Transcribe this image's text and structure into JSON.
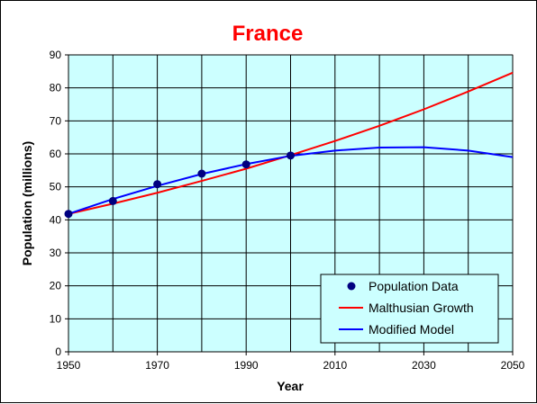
{
  "chart_data": {
    "type": "line",
    "title": "France",
    "xlabel": "Year",
    "ylabel": "Population (millions)",
    "xlim": [
      1950,
      2050
    ],
    "ylim": [
      0,
      90
    ],
    "x_ticks": [
      1950,
      1970,
      1990,
      2010,
      2030,
      2050
    ],
    "x_gridlines": [
      1950,
      1960,
      1970,
      1980,
      1990,
      2000,
      2010,
      2020,
      2030,
      2040,
      2050
    ],
    "y_ticks": [
      0,
      10,
      20,
      30,
      40,
      50,
      60,
      70,
      80,
      90
    ],
    "grid": true,
    "legend_position": "bottom-right",
    "colors": {
      "title": "#ff0000",
      "plot_background": "#ccffff",
      "data_points": "#000080",
      "malthusian": "#ff0000",
      "modified": "#0000ff"
    },
    "series": [
      {
        "name": "Population Data",
        "kind": "markers",
        "x": [
          1950,
          1960,
          1970,
          1980,
          1990,
          2000
        ],
        "y": [
          41.8,
          45.7,
          50.8,
          54.0,
          56.8,
          59.5
        ]
      },
      {
        "name": "Malthusian Growth",
        "kind": "line",
        "x": [
          1950,
          1960,
          1970,
          1980,
          1990,
          2000,
          2010,
          2020,
          2030,
          2040,
          2050
        ],
        "y": [
          41.8,
          44.9,
          48.2,
          51.8,
          55.5,
          59.6,
          63.9,
          68.5,
          73.5,
          78.9,
          84.6
        ]
      },
      {
        "name": "Modified Model",
        "kind": "line",
        "x": [
          1950,
          1960,
          1970,
          1980,
          1990,
          2000,
          2010,
          2020,
          2030,
          2040,
          2050
        ],
        "y": [
          41.8,
          46.3,
          50.3,
          53.9,
          56.9,
          59.4,
          61.0,
          61.9,
          62.0,
          61.0,
          59.0
        ]
      }
    ]
  }
}
